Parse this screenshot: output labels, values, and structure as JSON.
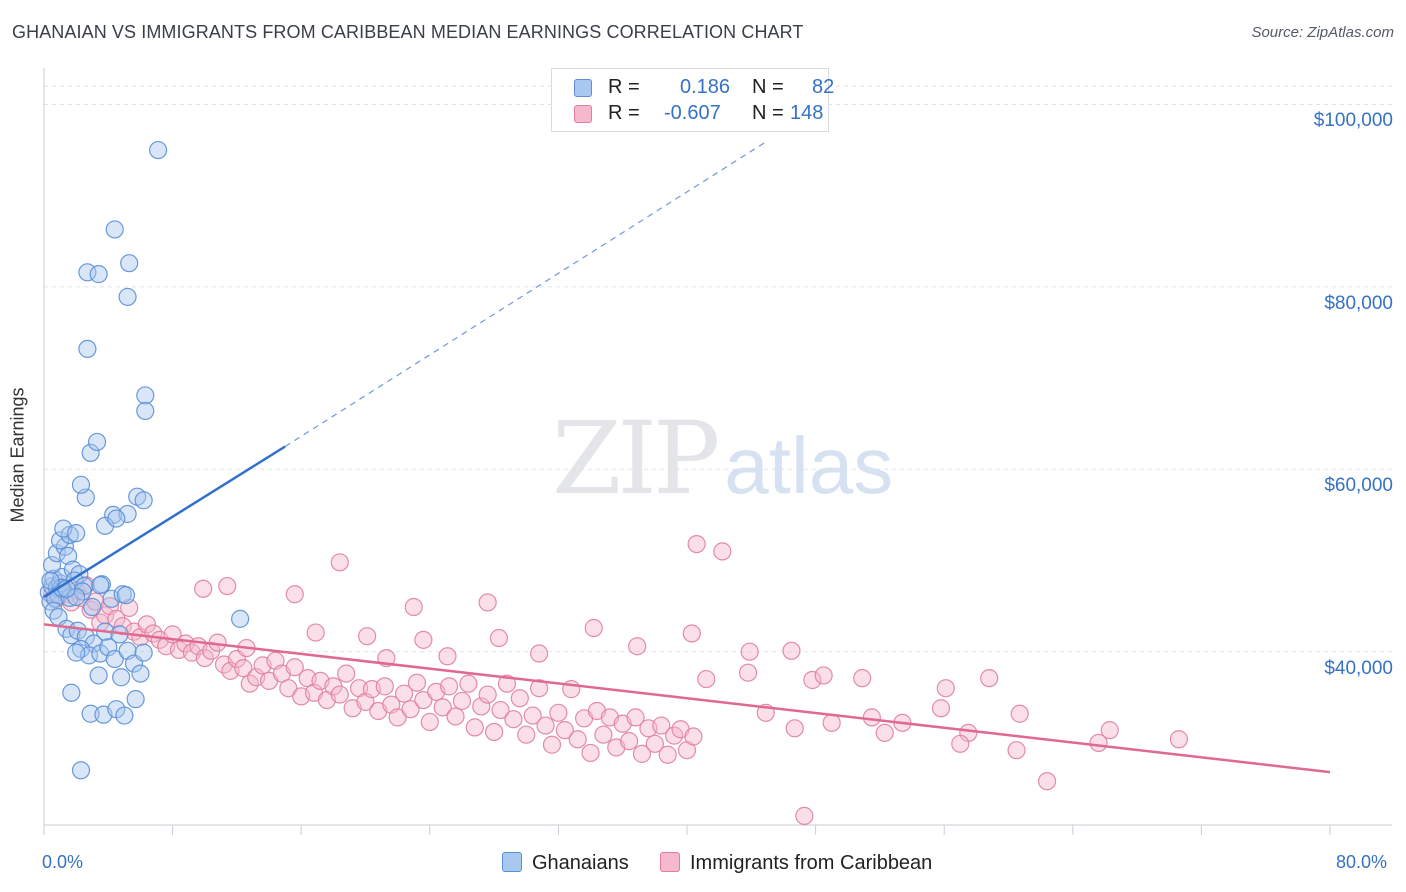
{
  "header": {
    "title": "GHANAIAN VS IMMIGRANTS FROM CARIBBEAN MEDIAN EARNINGS CORRELATION CHART",
    "source": "Source: ZipAtlas.com"
  },
  "watermark": {
    "zip": "ZIP",
    "atlas": "atlas"
  },
  "legend": {
    "rows": [
      {
        "r_label": "R =",
        "r_value": "0.186",
        "n_label": "N =",
        "n_value": "82",
        "color": "#a8c8f0"
      },
      {
        "r_label": "R =",
        "r_value": "-0.607",
        "n_label": "N =",
        "n_value": "148",
        "color": "#f5b8cc"
      }
    ]
  },
  "bottom_legend": {
    "series1": "Ghanaians",
    "series2": "Immigrants from Caribbean"
  },
  "colors": {
    "blue_fill": "#a8c8f0",
    "blue_stroke": "#5b8fd6",
    "blue_line": "#2f6fce",
    "pink_fill": "#f5b8cc",
    "pink_stroke": "#e07fa0",
    "pink_line": "#e0698f",
    "grid": "#dde2e8",
    "axis_text": "#3572c6"
  },
  "chart_data": {
    "type": "scatter",
    "title": "GHANAIAN VS IMMIGRANTS FROM CARIBBEAN MEDIAN EARNINGS CORRELATION CHART",
    "xlabel": "",
    "ylabel": "Median Earnings",
    "xlim": [
      0,
      80
    ],
    "ylim": [
      21000,
      104000
    ],
    "x_tick_labels": [
      "0.0%",
      "80.0%"
    ],
    "y_ticks": [
      40000,
      60000,
      80000,
      100000
    ],
    "y_tick_labels": [
      "$40,000",
      "$60,000",
      "$80,000",
      "$100,000"
    ],
    "grid": true,
    "legend_position": "top-center",
    "series": [
      {
        "name": "Ghanaians",
        "r": 0.186,
        "n": 82,
        "trend": {
          "x0": 0,
          "y0": 46000,
          "x1_solid": 15,
          "y1_solid": 62500,
          "x1_dashed": 45,
          "y1_dashed": 96000
        },
        "points": [
          [
            0.3,
            46500
          ],
          [
            0.5,
            47200
          ],
          [
            0.4,
            45500
          ],
          [
            0.6,
            48000
          ],
          [
            0.8,
            47000
          ],
          [
            0.9,
            46200
          ],
          [
            1.0,
            47500
          ],
          [
            1.2,
            46800
          ],
          [
            0.7,
            45800
          ],
          [
            1.1,
            48200
          ],
          [
            0.5,
            49500
          ],
          [
            0.8,
            50800
          ],
          [
            1.3,
            51500
          ],
          [
            1.0,
            52200
          ],
          [
            1.6,
            52800
          ],
          [
            1.2,
            53500
          ],
          [
            2.0,
            53000
          ],
          [
            1.5,
            50500
          ],
          [
            1.8,
            49000
          ],
          [
            2.2,
            48500
          ],
          [
            0.6,
            44500
          ],
          [
            0.9,
            43800
          ],
          [
            1.4,
            42500
          ],
          [
            1.7,
            41800
          ],
          [
            2.1,
            42300
          ],
          [
            2.6,
            41600
          ],
          [
            3.1,
            40900
          ],
          [
            2.3,
            40300
          ],
          [
            2.8,
            39600
          ],
          [
            2.0,
            39900
          ],
          [
            3.5,
            39800
          ],
          [
            4.0,
            40500
          ],
          [
            4.4,
            39200
          ],
          [
            5.2,
            40100
          ],
          [
            5.6,
            38700
          ],
          [
            6.2,
            39900
          ],
          [
            3.4,
            37400
          ],
          [
            4.8,
            37200
          ],
          [
            6.0,
            37600
          ],
          [
            1.7,
            35500
          ],
          [
            2.9,
            33200
          ],
          [
            3.7,
            33100
          ],
          [
            4.5,
            33700
          ],
          [
            5.0,
            33000
          ],
          [
            2.3,
            27000
          ],
          [
            5.7,
            34800
          ],
          [
            1.9,
            47800
          ],
          [
            2.5,
            47200
          ],
          [
            3.6,
            47400
          ],
          [
            4.2,
            45800
          ],
          [
            4.9,
            46300
          ],
          [
            5.1,
            46200
          ],
          [
            3.8,
            42200
          ],
          [
            4.7,
            41900
          ],
          [
            2.6,
            56900
          ],
          [
            2.3,
            58300
          ],
          [
            2.9,
            61800
          ],
          [
            3.3,
            63000
          ],
          [
            4.3,
            55000
          ],
          [
            5.2,
            55100
          ],
          [
            5.8,
            57000
          ],
          [
            6.2,
            56600
          ],
          [
            3.8,
            53800
          ],
          [
            4.5,
            54600
          ],
          [
            2.7,
            73200
          ],
          [
            2.7,
            81600
          ],
          [
            3.4,
            81400
          ],
          [
            4.4,
            86300
          ],
          [
            5.3,
            82600
          ],
          [
            5.2,
            78900
          ],
          [
            6.3,
            68100
          ],
          [
            6.3,
            66400
          ],
          [
            7.1,
            95000
          ],
          [
            12.2,
            43600
          ],
          [
            1.6,
            45900
          ],
          [
            2.4,
            46600
          ],
          [
            3.0,
            44900
          ],
          [
            1.1,
            47000
          ],
          [
            2.0,
            46000
          ],
          [
            0.4,
            47800
          ],
          [
            1.4,
            46900
          ],
          [
            3.5,
            47300
          ]
        ]
      },
      {
        "name": "Immigrants from Caribbean",
        "r": -0.607,
        "n": 148,
        "trend": {
          "x0": 0,
          "y0": 43000,
          "x1": 80,
          "y1": 26800
        },
        "points": [
          [
            0.5,
            46200
          ],
          [
            0.8,
            45800
          ],
          [
            1.1,
            47100
          ],
          [
            1.4,
            46300
          ],
          [
            1.7,
            45400
          ],
          [
            2.0,
            46700
          ],
          [
            2.3,
            45900
          ],
          [
            2.6,
            47300
          ],
          [
            2.9,
            44600
          ],
          [
            3.2,
            45500
          ],
          [
            3.5,
            43200
          ],
          [
            3.8,
            44000
          ],
          [
            4.1,
            45000
          ],
          [
            4.5,
            43600
          ],
          [
            4.9,
            42800
          ],
          [
            5.3,
            44800
          ],
          [
            5.6,
            42200
          ],
          [
            6.0,
            41600
          ],
          [
            6.4,
            43000
          ],
          [
            6.8,
            42000
          ],
          [
            7.2,
            41300
          ],
          [
            7.6,
            40600
          ],
          [
            8.0,
            41900
          ],
          [
            8.4,
            40200
          ],
          [
            8.8,
            40900
          ],
          [
            9.2,
            39900
          ],
          [
            9.6,
            40600
          ],
          [
            10.0,
            39300
          ],
          [
            10.4,
            40100
          ],
          [
            10.8,
            41000
          ],
          [
            11.2,
            38600
          ],
          [
            11.6,
            37900
          ],
          [
            12.0,
            39200
          ],
          [
            12.4,
            38200
          ],
          [
            12.8,
            36500
          ],
          [
            13.2,
            37200
          ],
          [
            13.6,
            38500
          ],
          [
            14.0,
            36800
          ],
          [
            14.4,
            39000
          ],
          [
            14.8,
            37600
          ],
          [
            15.2,
            36000
          ],
          [
            15.6,
            38300
          ],
          [
            16.0,
            35100
          ],
          [
            16.4,
            37100
          ],
          [
            16.8,
            35500
          ],
          [
            17.2,
            36800
          ],
          [
            17.6,
            34700
          ],
          [
            18.0,
            36200
          ],
          [
            18.4,
            35300
          ],
          [
            18.8,
            37600
          ],
          [
            19.2,
            33800
          ],
          [
            19.6,
            36000
          ],
          [
            20.0,
            34500
          ],
          [
            20.4,
            35900
          ],
          [
            20.8,
            33500
          ],
          [
            21.2,
            36200
          ],
          [
            21.6,
            34200
          ],
          [
            22.0,
            32800
          ],
          [
            22.4,
            35400
          ],
          [
            22.8,
            33700
          ],
          [
            23.2,
            36600
          ],
          [
            23.6,
            34700
          ],
          [
            24.0,
            32300
          ],
          [
            24.4,
            35600
          ],
          [
            24.8,
            33900
          ],
          [
            25.2,
            36200
          ],
          [
            25.6,
            32900
          ],
          [
            26.0,
            34600
          ],
          [
            26.4,
            36500
          ],
          [
            26.8,
            31700
          ],
          [
            27.2,
            34000
          ],
          [
            27.6,
            35300
          ],
          [
            28.0,
            31200
          ],
          [
            28.4,
            33600
          ],
          [
            28.8,
            36500
          ],
          [
            29.2,
            32600
          ],
          [
            29.6,
            34900
          ],
          [
            30.0,
            30900
          ],
          [
            30.4,
            33000
          ],
          [
            30.8,
            36000
          ],
          [
            31.2,
            31900
          ],
          [
            31.6,
            29800
          ],
          [
            32.0,
            33300
          ],
          [
            32.4,
            31400
          ],
          [
            32.8,
            35900
          ],
          [
            33.2,
            30400
          ],
          [
            33.6,
            32700
          ],
          [
            34.0,
            28900
          ],
          [
            34.4,
            33500
          ],
          [
            34.8,
            30900
          ],
          [
            35.2,
            32800
          ],
          [
            35.6,
            29500
          ],
          [
            36.0,
            32100
          ],
          [
            36.4,
            30200
          ],
          [
            36.8,
            32800
          ],
          [
            37.2,
            28800
          ],
          [
            37.6,
            31600
          ],
          [
            38.0,
            29900
          ],
          [
            38.4,
            31900
          ],
          [
            38.8,
            28700
          ],
          [
            39.2,
            30800
          ],
          [
            39.6,
            31500
          ],
          [
            40.0,
            29200
          ],
          [
            40.4,
            30700
          ],
          [
            18.4,
            49800
          ],
          [
            40.6,
            51800
          ],
          [
            42.2,
            51000
          ],
          [
            9.9,
            46900
          ],
          [
            11.4,
            47200
          ],
          [
            15.6,
            46300
          ],
          [
            23.0,
            44900
          ],
          [
            27.6,
            45400
          ],
          [
            16.9,
            42100
          ],
          [
            20.1,
            41700
          ],
          [
            23.6,
            41300
          ],
          [
            28.3,
            41500
          ],
          [
            34.2,
            42600
          ],
          [
            40.3,
            42000
          ],
          [
            25.1,
            39500
          ],
          [
            30.8,
            39800
          ],
          [
            36.9,
            40600
          ],
          [
            43.9,
            40000
          ],
          [
            46.5,
            40100
          ],
          [
            12.6,
            40400
          ],
          [
            21.3,
            39300
          ],
          [
            41.2,
            37000
          ],
          [
            43.8,
            37700
          ],
          [
            47.8,
            36900
          ],
          [
            48.5,
            37400
          ],
          [
            50.9,
            37100
          ],
          [
            44.9,
            33300
          ],
          [
            46.7,
            31600
          ],
          [
            49.0,
            32200
          ],
          [
            51.5,
            32800
          ],
          [
            52.3,
            31100
          ],
          [
            55.8,
            33800
          ],
          [
            57.5,
            31100
          ],
          [
            60.7,
            33200
          ],
          [
            57.0,
            29900
          ],
          [
            65.6,
            30000
          ],
          [
            66.3,
            31400
          ],
          [
            70.6,
            30400
          ],
          [
            62.4,
            25800
          ],
          [
            60.5,
            29200
          ],
          [
            47.3,
            22000
          ],
          [
            53.4,
            32200
          ],
          [
            56.1,
            36000
          ],
          [
            58.8,
            37100
          ]
        ]
      }
    ]
  }
}
